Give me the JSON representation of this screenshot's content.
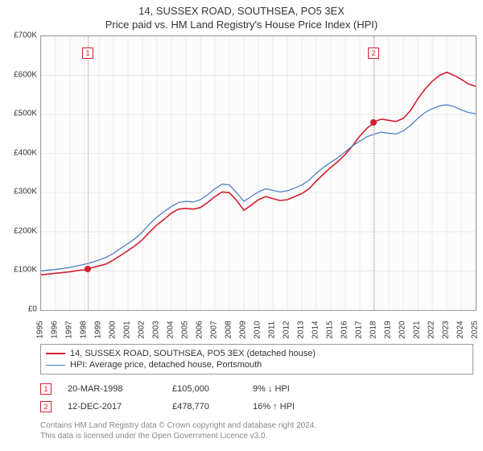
{
  "title_line1": "14, SUSSEX ROAD, SOUTHSEA, PO5 3EX",
  "title_line2": "Price paid vs. HM Land Registry's House Price Index (HPI)",
  "chart": {
    "type": "line",
    "background_color": "#fcfcfc",
    "border_color": "#999999",
    "grid_color": "#e5e5e5",
    "font_color": "#333333",
    "axis_fontsize": 10,
    "ylim": [
      0,
      700000
    ],
    "ytick_step": 100000,
    "ytick_labels": [
      "£0",
      "£100K",
      "£200K",
      "£300K",
      "£400K",
      "£500K",
      "£600K",
      "£700K"
    ],
    "x_years": [
      1995,
      1996,
      1997,
      1998,
      1999,
      2000,
      2001,
      2002,
      2003,
      2004,
      2005,
      2006,
      2007,
      2008,
      2009,
      2010,
      2011,
      2012,
      2013,
      2014,
      2015,
      2016,
      2017,
      2018,
      2019,
      2020,
      2021,
      2022,
      2023,
      2024,
      2025
    ],
    "series": [
      {
        "name": "14, SUSSEX ROAD, SOUTHSEA, PO5 3EX (detached house)",
        "color": "#d21f2f",
        "line_width": 1.6,
        "data": [
          [
            1995.0,
            90000
          ],
          [
            1995.5,
            92000
          ],
          [
            1996.0,
            94000
          ],
          [
            1996.5,
            96000
          ],
          [
            1997.0,
            98000
          ],
          [
            1997.5,
            101000
          ],
          [
            1998.0,
            103000
          ],
          [
            1998.22,
            105000
          ],
          [
            1998.5,
            108000
          ],
          [
            1999.0,
            113000
          ],
          [
            1999.5,
            118000
          ],
          [
            2000.0,
            128000
          ],
          [
            2000.5,
            140000
          ],
          [
            2001.0,
            152000
          ],
          [
            2001.5,
            165000
          ],
          [
            2002.0,
            180000
          ],
          [
            2002.5,
            200000
          ],
          [
            2003.0,
            218000
          ],
          [
            2003.5,
            232000
          ],
          [
            2004.0,
            248000
          ],
          [
            2004.5,
            258000
          ],
          [
            2005.0,
            260000
          ],
          [
            2005.5,
            258000
          ],
          [
            2006.0,
            262000
          ],
          [
            2006.5,
            275000
          ],
          [
            2007.0,
            290000
          ],
          [
            2007.5,
            302000
          ],
          [
            2008.0,
            300000
          ],
          [
            2008.5,
            280000
          ],
          [
            2009.0,
            255000
          ],
          [
            2009.5,
            268000
          ],
          [
            2010.0,
            282000
          ],
          [
            2010.5,
            290000
          ],
          [
            2011.0,
            285000
          ],
          [
            2011.5,
            280000
          ],
          [
            2012.0,
            282000
          ],
          [
            2012.5,
            290000
          ],
          [
            2013.0,
            298000
          ],
          [
            2013.5,
            310000
          ],
          [
            2014.0,
            330000
          ],
          [
            2014.5,
            348000
          ],
          [
            2015.0,
            365000
          ],
          [
            2015.5,
            380000
          ],
          [
            2016.0,
            398000
          ],
          [
            2016.5,
            420000
          ],
          [
            2017.0,
            445000
          ],
          [
            2017.5,
            465000
          ],
          [
            2017.95,
            478770
          ],
          [
            2018.0,
            482000
          ],
          [
            2018.5,
            488000
          ],
          [
            2019.0,
            485000
          ],
          [
            2019.5,
            482000
          ],
          [
            2020.0,
            490000
          ],
          [
            2020.5,
            510000
          ],
          [
            2021.0,
            540000
          ],
          [
            2021.5,
            565000
          ],
          [
            2022.0,
            585000
          ],
          [
            2022.5,
            600000
          ],
          [
            2023.0,
            608000
          ],
          [
            2023.5,
            600000
          ],
          [
            2024.0,
            590000
          ],
          [
            2024.5,
            578000
          ],
          [
            2025.0,
            572000
          ]
        ]
      },
      {
        "name": "HPI: Average price, detached house, Portsmouth",
        "color": "#4a76c7",
        "line_width": 1.2,
        "data": [
          [
            1995.0,
            100000
          ],
          [
            1995.5,
            102000
          ],
          [
            1996.0,
            104000
          ],
          [
            1996.5,
            106000
          ],
          [
            1997.0,
            109000
          ],
          [
            1997.5,
            113000
          ],
          [
            1998.0,
            117000
          ],
          [
            1998.5,
            122000
          ],
          [
            1999.0,
            128000
          ],
          [
            1999.5,
            135000
          ],
          [
            2000.0,
            145000
          ],
          [
            2000.5,
            158000
          ],
          [
            2001.0,
            170000
          ],
          [
            2001.5,
            183000
          ],
          [
            2002.0,
            200000
          ],
          [
            2002.5,
            220000
          ],
          [
            2003.0,
            238000
          ],
          [
            2003.5,
            252000
          ],
          [
            2004.0,
            265000
          ],
          [
            2004.5,
            275000
          ],
          [
            2005.0,
            278000
          ],
          [
            2005.5,
            276000
          ],
          [
            2006.0,
            282000
          ],
          [
            2006.5,
            295000
          ],
          [
            2007.0,
            310000
          ],
          [
            2007.5,
            322000
          ],
          [
            2008.0,
            320000
          ],
          [
            2008.5,
            300000
          ],
          [
            2009.0,
            278000
          ],
          [
            2009.5,
            290000
          ],
          [
            2010.0,
            302000
          ],
          [
            2010.5,
            310000
          ],
          [
            2011.0,
            306000
          ],
          [
            2011.5,
            302000
          ],
          [
            2012.0,
            305000
          ],
          [
            2012.5,
            312000
          ],
          [
            2013.0,
            320000
          ],
          [
            2013.5,
            332000
          ],
          [
            2014.0,
            350000
          ],
          [
            2014.5,
            365000
          ],
          [
            2015.0,
            378000
          ],
          [
            2015.5,
            390000
          ],
          [
            2016.0,
            405000
          ],
          [
            2016.5,
            420000
          ],
          [
            2017.0,
            432000
          ],
          [
            2017.5,
            443000
          ],
          [
            2018.0,
            450000
          ],
          [
            2018.5,
            455000
          ],
          [
            2019.0,
            452000
          ],
          [
            2019.5,
            450000
          ],
          [
            2020.0,
            458000
          ],
          [
            2020.5,
            472000
          ],
          [
            2021.0,
            490000
          ],
          [
            2021.5,
            505000
          ],
          [
            2022.0,
            515000
          ],
          [
            2022.5,
            522000
          ],
          [
            2023.0,
            525000
          ],
          [
            2023.5,
            520000
          ],
          [
            2024.0,
            512000
          ],
          [
            2024.5,
            505000
          ],
          [
            2025.0,
            502000
          ]
        ]
      }
    ],
    "sale_markers": [
      {
        "label": "1",
        "year": 1998.22,
        "top_offset": 14
      },
      {
        "label": "2",
        "year": 2017.95,
        "top_offset": 14
      }
    ],
    "sale_points": [
      {
        "year": 1998.22,
        "value": 105000
      },
      {
        "year": 2017.95,
        "value": 478770
      }
    ]
  },
  "legend": {
    "items": [
      {
        "color": "#d21f2f",
        "label": "14, SUSSEX ROAD, SOUTHSEA, PO5 3EX (detached house)",
        "width": 2
      },
      {
        "color": "#4a76c7",
        "label": "HPI: Average price, detached house, Portsmouth",
        "width": 1
      }
    ]
  },
  "sales": [
    {
      "marker": "1",
      "date": "20-MAR-1998",
      "price": "£105,000",
      "diff": "9% ↓ HPI"
    },
    {
      "marker": "2",
      "date": "12-DEC-2017",
      "price": "£478,770",
      "diff": "16% ↑ HPI"
    }
  ],
  "footer_line1": "Contains HM Land Registry data © Crown copyright and database right 2024.",
  "footer_line2": "This data is licensed under the Open Government Licence v3.0."
}
